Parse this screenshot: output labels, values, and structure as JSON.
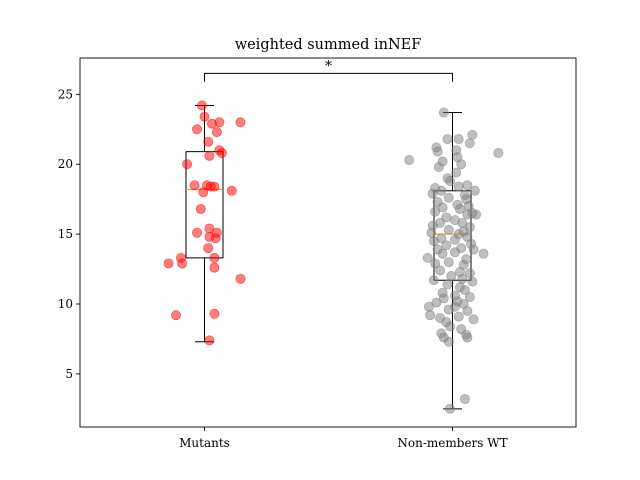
{
  "chart_data": {
    "type": "box",
    "title": "weighted summed inNEF",
    "xlabel": "",
    "ylabel": "",
    "ylim": [
      1.2,
      27.6
    ],
    "yticks": [
      5,
      10,
      15,
      20,
      25
    ],
    "categories": [
      "Mutants",
      "Non-members WT"
    ],
    "significance": {
      "label": "*",
      "between": [
        0,
        1
      ],
      "y": 26.5,
      "drop": 0.6
    },
    "colors": {
      "mutants": "#ff0000",
      "wt": "#808080",
      "median": "#ff8c00"
    },
    "boxes": [
      {
        "category": "Mutants",
        "whisker_low": 7.3,
        "q1": 13.3,
        "median": 18.2,
        "q3": 20.9,
        "whisker_high": 24.2
      },
      {
        "category": "Non-members WT",
        "whisker_low": 2.5,
        "q1": 11.7,
        "median": 15.0,
        "q3": 18.1,
        "whisker_high": 23.7
      }
    ],
    "series": [
      {
        "category": "Mutants",
        "points": [
          [
            -0.02,
            24.2
          ],
          [
            0.0,
            23.4
          ],
          [
            0.06,
            22.9
          ],
          [
            0.12,
            23.0
          ],
          [
            0.29,
            23.0
          ],
          [
            -0.06,
            22.5
          ],
          [
            0.1,
            22.3
          ],
          [
            0.03,
            21.6
          ],
          [
            0.12,
            21.0
          ],
          [
            0.14,
            20.8
          ],
          [
            0.04,
            20.6
          ],
          [
            -0.14,
            20.0
          ],
          [
            0.02,
            18.5
          ],
          [
            0.05,
            18.4
          ],
          [
            -0.08,
            18.5
          ],
          [
            0.08,
            18.4
          ],
          [
            0.22,
            18.1
          ],
          [
            -0.01,
            18.0
          ],
          [
            -0.03,
            16.8
          ],
          [
            0.04,
            15.4
          ],
          [
            -0.06,
            15.1
          ],
          [
            0.1,
            15.1
          ],
          [
            0.04,
            14.8
          ],
          [
            0.09,
            14.7
          ],
          [
            0.03,
            14.0
          ],
          [
            -0.19,
            13.3
          ],
          [
            0.08,
            13.3
          ],
          [
            -0.29,
            12.9
          ],
          [
            -0.18,
            12.9
          ],
          [
            0.08,
            12.6
          ],
          [
            0.29,
            11.8
          ],
          [
            -0.23,
            9.2
          ],
          [
            0.08,
            9.3
          ],
          [
            0.04,
            7.4
          ]
        ]
      },
      {
        "category": "Non-members WT",
        "points": [
          [
            -0.07,
            23.7
          ],
          [
            0.05,
            21.8
          ],
          [
            0.16,
            22.1
          ],
          [
            -0.04,
            21.8
          ],
          [
            0.14,
            21.5
          ],
          [
            -0.13,
            21.2
          ],
          [
            0.03,
            21.0
          ],
          [
            -0.12,
            20.9
          ],
          [
            0.37,
            20.8
          ],
          [
            -0.35,
            20.3
          ],
          [
            0.04,
            20.5
          ],
          [
            -0.08,
            20.2
          ],
          [
            0.07,
            20.0
          ],
          [
            -0.11,
            19.8
          ],
          [
            0.03,
            19.4
          ],
          [
            -0.04,
            19.0
          ],
          [
            -0.02,
            18.8
          ],
          [
            0.12,
            18.5
          ],
          [
            -0.14,
            18.3
          ],
          [
            0.05,
            18.4
          ],
          [
            -0.09,
            18.1
          ],
          [
            0.18,
            18.1
          ],
          [
            -0.16,
            17.9
          ],
          [
            0.1,
            17.8
          ],
          [
            -0.03,
            17.6
          ],
          [
            0.11,
            17.5
          ],
          [
            -0.12,
            17.3
          ],
          [
            0.04,
            17.1
          ],
          [
            0.13,
            17.0
          ],
          [
            -0.08,
            16.9
          ],
          [
            0.06,
            16.8
          ],
          [
            -0.14,
            16.6
          ],
          [
            0.16,
            16.5
          ],
          [
            0.12,
            16.4
          ],
          [
            0.19,
            16.4
          ],
          [
            -0.05,
            16.2
          ],
          [
            0.02,
            16.0
          ],
          [
            -0.1,
            15.8
          ],
          [
            0.08,
            15.8
          ],
          [
            -0.16,
            15.6
          ],
          [
            0.14,
            15.5
          ],
          [
            -0.03,
            15.3
          ],
          [
            0.09,
            15.2
          ],
          [
            -0.17,
            15.1
          ],
          [
            0.05,
            15.0
          ],
          [
            0.12,
            14.8
          ],
          [
            -0.09,
            14.7
          ],
          [
            0.02,
            14.6
          ],
          [
            -0.15,
            14.5
          ],
          [
            0.15,
            14.3
          ],
          [
            -0.05,
            14.2
          ],
          [
            0.07,
            14.0
          ],
          [
            -0.12,
            13.9
          ],
          [
            0.17,
            13.9
          ],
          [
            0.02,
            13.7
          ],
          [
            0.25,
            13.6
          ],
          [
            -0.08,
            13.6
          ],
          [
            -0.2,
            13.3
          ],
          [
            0.11,
            13.2
          ],
          [
            -0.03,
            13.0
          ],
          [
            -0.14,
            12.9
          ],
          [
            0.09,
            12.8
          ],
          [
            -0.1,
            12.4
          ],
          [
            0.06,
            12.3
          ],
          [
            0.14,
            12.2
          ],
          [
            -0.01,
            12.0
          ],
          [
            0.08,
            11.8
          ],
          [
            -0.15,
            11.7
          ],
          [
            0.16,
            11.6
          ],
          [
            -0.04,
            11.4
          ],
          [
            0.06,
            11.2
          ],
          [
            0.1,
            11.0
          ],
          [
            -0.08,
            10.8
          ],
          [
            0.02,
            10.6
          ],
          [
            0.14,
            10.5
          ],
          [
            -0.07,
            10.4
          ],
          [
            0.04,
            10.2
          ],
          [
            -0.13,
            10.1
          ],
          [
            0.09,
            10.0
          ],
          [
            -0.19,
            9.8
          ],
          [
            0.02,
            9.8
          ],
          [
            -0.03,
            9.6
          ],
          [
            0.12,
            9.5
          ],
          [
            -0.18,
            9.2
          ],
          [
            0.05,
            9.1
          ],
          [
            -0.1,
            9.0
          ],
          [
            0.17,
            8.9
          ],
          [
            -0.05,
            8.7
          ],
          [
            -0.02,
            8.4
          ],
          [
            0.07,
            8.2
          ],
          [
            -0.09,
            7.9
          ],
          [
            0.11,
            7.8
          ],
          [
            -0.07,
            7.6
          ],
          [
            0.12,
            7.6
          ],
          [
            -0.03,
            7.3
          ],
          [
            0.1,
            3.2
          ],
          [
            -0.02,
            2.5
          ]
        ]
      }
    ]
  }
}
